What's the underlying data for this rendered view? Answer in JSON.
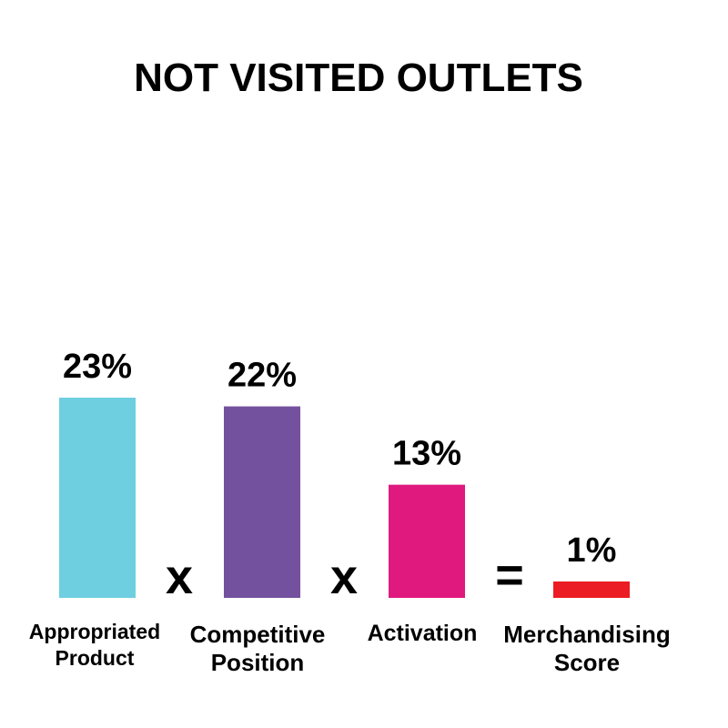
{
  "chart_data": {
    "type": "bar",
    "title": "NOT VISITED OUTLETS",
    "categories": [
      [
        "Appropriated",
        "Product"
      ],
      [
        "Competitive",
        "Position"
      ],
      [
        "Activation"
      ],
      [
        "Merchandising",
        "Score"
      ]
    ],
    "values": [
      23,
      22,
      13,
      1
    ],
    "value_labels": [
      "23%",
      "22%",
      "13%",
      "1%"
    ],
    "colors": [
      "#6ecfe0",
      "#74519e",
      "#e0197f",
      "#ec1c24"
    ],
    "operators": [
      "x",
      "x",
      "="
    ],
    "ylim": [
      0,
      23
    ],
    "grid": false
  }
}
